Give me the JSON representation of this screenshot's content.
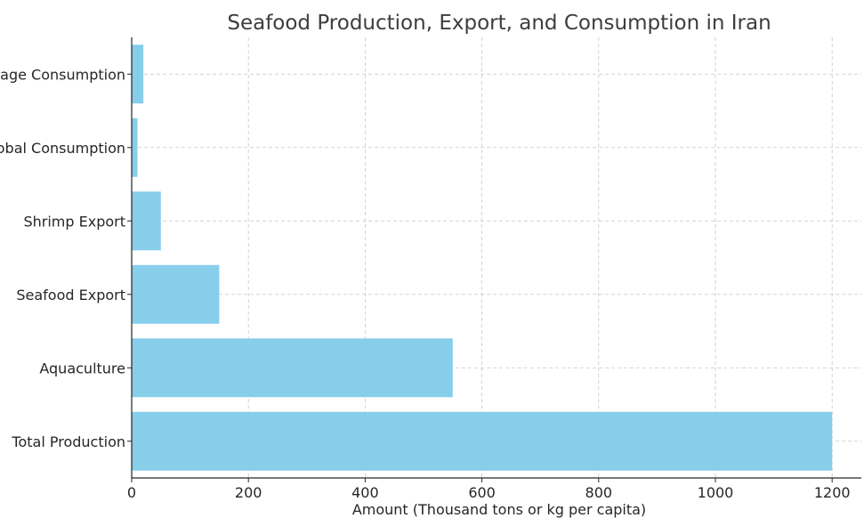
{
  "chart_data": {
    "type": "bar",
    "orientation": "horizontal",
    "title": "Seafood Production, Export, and Consumption in Iran",
    "xlabel": "Amount (Thousand tons or kg per capita)",
    "ylabel": "",
    "categories": [
      "Total Production",
      "Aquaculture",
      "Seafood Export",
      "Shrimp Export",
      "Global Consumption",
      "Average Consumption"
    ],
    "values": [
      1200,
      550,
      150,
      50,
      10,
      20
    ],
    "xlim": [
      0,
      1250
    ],
    "xticks": [
      0,
      200,
      400,
      600,
      800,
      1000,
      1200
    ],
    "grid": true,
    "bar_color": "#87ceeb"
  }
}
